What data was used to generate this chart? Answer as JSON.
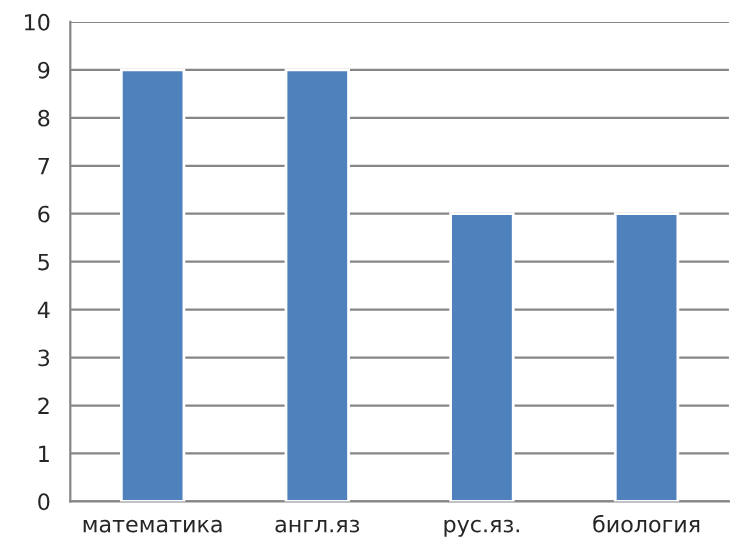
{
  "chart_data": {
    "type": "bar",
    "categories": [
      "математика",
      "англ.яз",
      "рус.яз.",
      "биология"
    ],
    "values": [
      9,
      9,
      6,
      6
    ],
    "color": "#4f81bd",
    "ylim": [
      0,
      10
    ],
    "yticks": [
      0,
      1,
      2,
      3,
      4,
      5,
      6,
      7,
      8,
      9,
      10
    ],
    "grid": "y",
    "legend": false
  }
}
